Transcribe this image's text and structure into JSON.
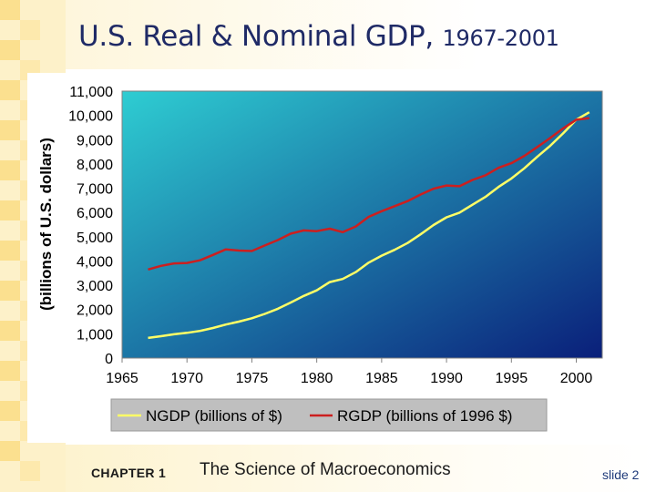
{
  "slide": {
    "title_main": "U.S. Real & Nominal GDP,",
    "title_years": "1967-2001",
    "chapter_label": "CHAPTER 1",
    "subject_label": "The Science of Macroeconomics",
    "slide_label": "slide 2"
  },
  "colors": {
    "title": "#1f2a66",
    "ngdp_line": "#ffff66",
    "rgdp_line": "#cc1f1f",
    "plot_top": "#2ecdd2",
    "plot_bottom": "#0a1f7a",
    "legend_bg": "#bfbfbf"
  },
  "chart_data": {
    "type": "line",
    "title": "",
    "xlabel": "",
    "ylabel": "(billions of U.S. dollars)",
    "xlim": [
      1965,
      2002
    ],
    "ylim": [
      0,
      11000
    ],
    "x_ticks": [
      "1965",
      "1970",
      "1975",
      "1980",
      "1985",
      "1990",
      "1995",
      "2000"
    ],
    "y_ticks": [
      "0",
      "1,000",
      "2,000",
      "3,000",
      "4,000",
      "5,000",
      "6,000",
      "7,000",
      "8,000",
      "9,000",
      "10,000",
      "11,000"
    ],
    "legend_position": "bottom",
    "grid": false,
    "x": [
      1967,
      1968,
      1969,
      1970,
      1971,
      1972,
      1973,
      1974,
      1975,
      1976,
      1977,
      1978,
      1979,
      1980,
      1981,
      1982,
      1983,
      1984,
      1985,
      1986,
      1987,
      1988,
      1989,
      1990,
      1991,
      1992,
      1993,
      1994,
      1995,
      1996,
      1997,
      1998,
      1999,
      2000,
      2001
    ],
    "series": [
      {
        "name": "NGDP (billions of $)",
        "values": [
          830,
          900,
          980,
          1040,
          1120,
          1240,
          1380,
          1500,
          1640,
          1820,
          2030,
          2290,
          2560,
          2790,
          3130,
          3260,
          3540,
          3930,
          4220,
          4460,
          4740,
          5100,
          5480,
          5800,
          5990,
          6320,
          6640,
          7050,
          7400,
          7820,
          8300,
          8750,
          9270,
          9820,
          10130
        ]
      },
      {
        "name": "RGDP (billions of 1996 $)",
        "values": [
          3650,
          3800,
          3900,
          3920,
          4030,
          4250,
          4480,
          4430,
          4410,
          4640,
          4860,
          5130,
          5260,
          5230,
          5330,
          5190,
          5420,
          5820,
          6050,
          6260,
          6470,
          6740,
          6980,
          7110,
          7080,
          7340,
          7530,
          7840,
          8030,
          8330,
          8700,
          9070,
          9470,
          9820,
          9890
        ]
      }
    ]
  }
}
